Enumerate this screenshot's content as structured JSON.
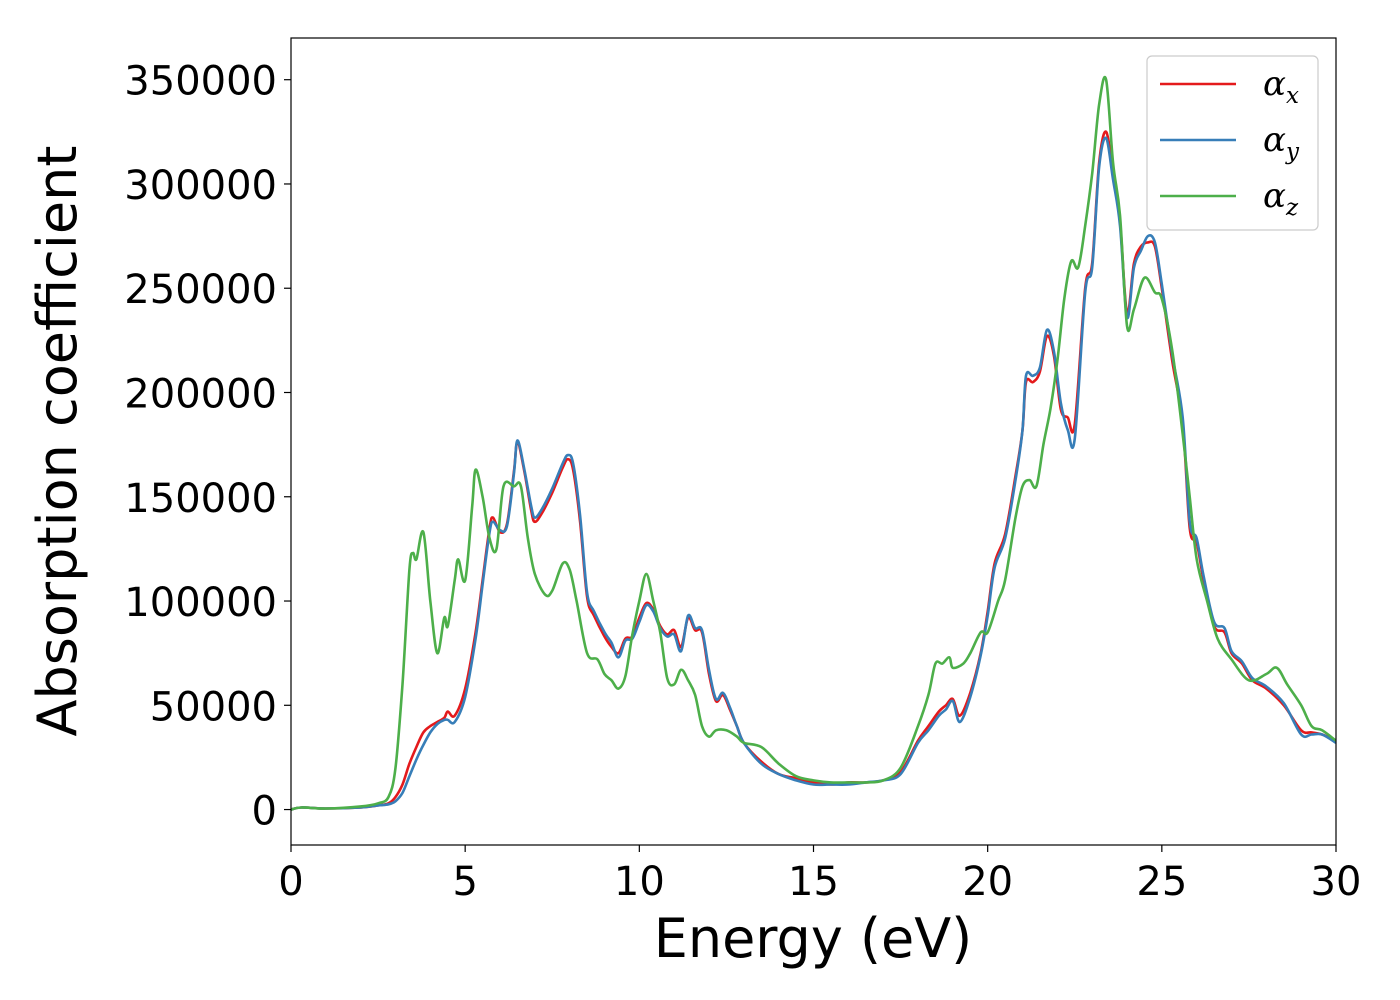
{
  "chart_data": {
    "type": "line",
    "title": "",
    "xlabel": "Energy (eV)",
    "ylabel": "Absorption coefficient",
    "xlim": [
      0,
      30
    ],
    "ylim": [
      -17000,
      370000
    ],
    "xticks": [
      0,
      5,
      10,
      15,
      20,
      25,
      30
    ],
    "xtick_labels": [
      "0",
      "5",
      "10",
      "15",
      "20",
      "25",
      "30"
    ],
    "yticks": [
      0,
      50000,
      100000,
      150000,
      200000,
      250000,
      300000,
      350000
    ],
    "ytick_labels": [
      "0",
      "50000",
      "100000",
      "150000",
      "200000",
      "250000",
      "300000",
      "350000"
    ],
    "grid": false,
    "legend_position": "top-right",
    "colors": {
      "alpha_x": "#e41a1c",
      "alpha_y": "#377eb8",
      "alpha_z": "#4daf4a"
    },
    "series": [
      {
        "name": "α_x",
        "label_base": "α",
        "label_sub": "x",
        "color": "#e41a1c",
        "x": [
          0,
          0.3,
          1,
          2,
          2.5,
          2.8,
          3.0,
          3.2,
          3.4,
          3.6,
          3.8,
          4.0,
          4.2,
          4.4,
          4.5,
          4.7,
          5.0,
          5.3,
          5.5,
          5.7,
          5.8,
          6.0,
          6.2,
          6.4,
          6.5,
          6.7,
          6.9,
          7.0,
          7.2,
          7.5,
          7.8,
          7.95,
          8.1,
          8.3,
          8.5,
          8.7,
          9.0,
          9.2,
          9.4,
          9.6,
          9.8,
          10.0,
          10.2,
          10.4,
          10.6,
          10.8,
          11.0,
          11.2,
          11.4,
          11.6,
          11.8,
          12.0,
          12.2,
          12.4,
          12.6,
          12.8,
          13.0,
          13.5,
          14.0,
          14.5,
          15.0,
          15.5,
          16.0,
          16.5,
          17.0,
          17.5,
          18.0,
          18.3,
          18.6,
          18.8,
          19.0,
          19.2,
          19.5,
          19.8,
          20.0,
          20.2,
          20.5,
          20.8,
          21.0,
          21.1,
          21.3,
          21.5,
          21.7,
          21.9,
          22.1,
          22.3,
          22.5,
          22.8,
          23.0,
          23.2,
          23.4,
          23.6,
          23.8,
          24.0,
          24.2,
          24.4,
          24.6,
          24.8,
          25.0,
          25.3,
          25.6,
          25.8,
          26.0,
          26.2,
          26.5,
          26.8,
          27.0,
          27.3,
          27.6,
          28.0,
          28.5,
          29.0,
          29.3,
          29.6,
          30.0
        ],
        "y": [
          0,
          1000,
          500,
          1000,
          2000,
          3000,
          6000,
          12000,
          22000,
          30000,
          37000,
          40000,
          42000,
          44000,
          47000,
          45000,
          58000,
          85000,
          110000,
          135000,
          140000,
          133000,
          137000,
          162000,
          176000,
          162000,
          143000,
          138000,
          142000,
          152000,
          164000,
          168000,
          163000,
          138000,
          102000,
          93000,
          83000,
          78000,
          75000,
          82000,
          83000,
          92000,
          99000,
          96000,
          88000,
          84000,
          86000,
          78000,
          92000,
          86000,
          85000,
          65000,
          52000,
          55000,
          48000,
          40000,
          32000,
          23000,
          17000,
          15000,
          13000,
          12000,
          13000,
          13000,
          14000,
          18000,
          33000,
          40000,
          47000,
          50000,
          53000,
          45000,
          56000,
          75000,
          95000,
          118000,
          132000,
          160000,
          182000,
          205000,
          205000,
          210000,
          227000,
          218000,
          192000,
          188000,
          185000,
          250000,
          262000,
          310000,
          325000,
          305000,
          282000,
          238000,
          262000,
          270000,
          272000,
          270000,
          250000,
          215000,
          185000,
          135000,
          128000,
          110000,
          88000,
          85000,
          75000,
          70000,
          62000,
          58000,
          50000,
          38000,
          37000,
          36000,
          33000
        ]
      },
      {
        "name": "α_y",
        "label_base": "α",
        "label_sub": "y",
        "color": "#377eb8",
        "x": [
          0,
          0.3,
          1,
          2,
          2.5,
          2.8,
          3.0,
          3.2,
          3.4,
          3.6,
          3.8,
          4.0,
          4.2,
          4.4,
          4.5,
          4.7,
          5.0,
          5.3,
          5.5,
          5.7,
          5.8,
          6.0,
          6.2,
          6.4,
          6.5,
          6.7,
          6.9,
          7.0,
          7.2,
          7.5,
          7.8,
          7.95,
          8.1,
          8.3,
          8.5,
          8.7,
          9.0,
          9.2,
          9.4,
          9.6,
          9.8,
          10.0,
          10.2,
          10.4,
          10.6,
          10.8,
          11.0,
          11.2,
          11.4,
          11.6,
          11.8,
          12.0,
          12.2,
          12.4,
          12.6,
          12.8,
          13.0,
          13.5,
          14.0,
          14.5,
          15.0,
          15.5,
          16.0,
          16.5,
          17.0,
          17.5,
          18.0,
          18.3,
          18.6,
          18.8,
          19.0,
          19.2,
          19.5,
          19.8,
          20.0,
          20.2,
          20.5,
          20.8,
          21.0,
          21.1,
          21.3,
          21.5,
          21.7,
          21.9,
          22.1,
          22.3,
          22.5,
          22.8,
          23.0,
          23.2,
          23.4,
          23.6,
          23.8,
          24.0,
          24.2,
          24.4,
          24.6,
          24.8,
          25.0,
          25.3,
          25.6,
          25.8,
          26.0,
          26.2,
          26.5,
          26.8,
          27.0,
          27.3,
          27.6,
          28.0,
          28.5,
          29.0,
          29.3,
          29.6,
          30.0
        ],
        "y": [
          0,
          1000,
          500,
          1000,
          2000,
          2500,
          4000,
          8000,
          16000,
          24000,
          31000,
          37000,
          41000,
          43000,
          43000,
          42000,
          54000,
          82000,
          108000,
          133000,
          138000,
          134000,
          136000,
          161000,
          177000,
          163000,
          145000,
          140000,
          144000,
          154000,
          166000,
          170000,
          166000,
          141000,
          104000,
          95000,
          85000,
          80000,
          73000,
          81000,
          82000,
          90000,
          98000,
          95000,
          87000,
          83000,
          84000,
          76000,
          93000,
          87000,
          86000,
          67000,
          53000,
          56000,
          49000,
          40000,
          32000,
          22000,
          17000,
          14000,
          12000,
          12000,
          12000,
          13000,
          14000,
          17000,
          32000,
          38000,
          45000,
          48000,
          52000,
          42000,
          54000,
          74000,
          93000,
          116000,
          130000,
          158000,
          182000,
          208000,
          208000,
          212000,
          230000,
          220000,
          195000,
          182000,
          178000,
          248000,
          260000,
          308000,
          322000,
          302000,
          280000,
          236000,
          260000,
          268000,
          275000,
          272000,
          252000,
          218000,
          188000,
          138000,
          130000,
          112000,
          90000,
          87000,
          76000,
          71000,
          63000,
          59000,
          51000,
          36000,
          36000,
          36000,
          32000
        ]
      },
      {
        "name": "α_z",
        "label_base": "α",
        "label_sub": "z",
        "color": "#4daf4a",
        "x": [
          0,
          0.3,
          1,
          2,
          2.5,
          2.8,
          3.0,
          3.2,
          3.4,
          3.5,
          3.6,
          3.8,
          4.0,
          4.2,
          4.4,
          4.5,
          4.7,
          4.8,
          5.0,
          5.2,
          5.3,
          5.5,
          5.7,
          5.9,
          6.1,
          6.4,
          6.6,
          6.8,
          7.0,
          7.3,
          7.5,
          7.8,
          8.0,
          8.2,
          8.5,
          8.8,
          9.0,
          9.2,
          9.4,
          9.6,
          9.8,
          10.0,
          10.2,
          10.4,
          10.6,
          10.8,
          11.0,
          11.2,
          11.4,
          11.6,
          11.8,
          12.0,
          12.2,
          12.5,
          12.8,
          13.0,
          13.5,
          14.0,
          14.5,
          15.0,
          15.5,
          16.0,
          16.5,
          17.0,
          17.5,
          18.0,
          18.3,
          18.5,
          18.7,
          18.9,
          19.0,
          19.3,
          19.5,
          19.8,
          20.0,
          20.3,
          20.5,
          20.8,
          21.0,
          21.2,
          21.4,
          21.6,
          21.8,
          22.0,
          22.2,
          22.4,
          22.6,
          22.8,
          23.0,
          23.2,
          23.4,
          23.6,
          23.8,
          24.0,
          24.2,
          24.5,
          24.8,
          25.0,
          25.3,
          25.6,
          25.8,
          26.0,
          26.3,
          26.6,
          27.0,
          27.5,
          28.0,
          28.3,
          28.6,
          29.0,
          29.3,
          29.6,
          30.0
        ],
        "y": [
          0,
          1000,
          500,
          1500,
          3000,
          6000,
          20000,
          60000,
          115000,
          123000,
          120000,
          133000,
          100000,
          75000,
          92000,
          88000,
          110000,
          120000,
          110000,
          145000,
          163000,
          150000,
          130000,
          125000,
          155000,
          155000,
          155000,
          130000,
          113000,
          103000,
          105000,
          118000,
          115000,
          100000,
          75000,
          72000,
          65000,
          62000,
          58000,
          64000,
          84000,
          100000,
          113000,
          100000,
          85000,
          63000,
          60000,
          67000,
          62000,
          55000,
          40000,
          35000,
          38000,
          38000,
          35000,
          32000,
          30000,
          22000,
          16000,
          14000,
          13000,
          13000,
          13000,
          14000,
          20000,
          40000,
          55000,
          70000,
          70000,
          73000,
          68000,
          70000,
          75000,
          85000,
          85000,
          100000,
          110000,
          140000,
          155000,
          158000,
          155000,
          175000,
          192000,
          215000,
          245000,
          263000,
          260000,
          280000,
          305000,
          338000,
          350000,
          310000,
          285000,
          232000,
          240000,
          255000,
          248000,
          245000,
          220000,
          180000,
          150000,
          120000,
          100000,
          82000,
          72000,
          62000,
          65000,
          68000,
          60000,
          50000,
          40000,
          38000,
          33000
        ]
      }
    ]
  }
}
